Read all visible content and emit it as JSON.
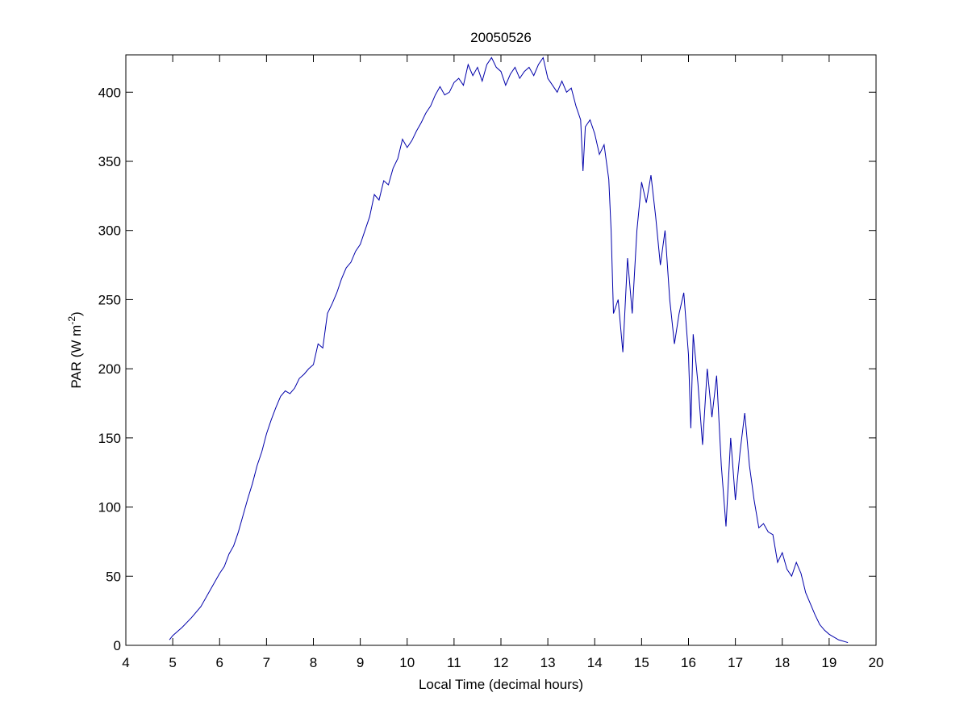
{
  "chart_data": {
    "type": "line",
    "title": "20050526",
    "xlabel": "Local Time (decimal hours)",
    "ylabel": [
      "PAR (W m",
      "-2",
      ")"
    ],
    "color": "#0000aa",
    "xlim": [
      4,
      20
    ],
    "xticks": [
      4,
      5,
      6,
      7,
      8,
      9,
      10,
      11,
      12,
      13,
      14,
      15,
      16,
      17,
      18,
      19,
      20
    ],
    "ylim": [
      0,
      427
    ],
    "yticks": [
      0,
      50,
      100,
      150,
      200,
      250,
      300,
      350,
      400
    ],
    "x": [
      4.93,
      5.0,
      5.2,
      5.4,
      5.6,
      5.8,
      6.0,
      6.1,
      6.2,
      6.3,
      6.4,
      6.5,
      6.6,
      6.7,
      6.8,
      6.9,
      7.0,
      7.1,
      7.2,
      7.3,
      7.4,
      7.5,
      7.6,
      7.7,
      7.8,
      7.9,
      8.0,
      8.1,
      8.2,
      8.3,
      8.4,
      8.5,
      8.6,
      8.7,
      8.8,
      8.9,
      9.0,
      9.1,
      9.2,
      9.3,
      9.4,
      9.5,
      9.6,
      9.7,
      9.8,
      9.9,
      10.0,
      10.1,
      10.2,
      10.3,
      10.4,
      10.5,
      10.6,
      10.7,
      10.8,
      10.9,
      11.0,
      11.1,
      11.2,
      11.3,
      11.4,
      11.5,
      11.6,
      11.7,
      11.8,
      11.9,
      12.0,
      12.1,
      12.2,
      12.3,
      12.4,
      12.5,
      12.6,
      12.7,
      12.8,
      12.9,
      13.0,
      13.1,
      13.2,
      13.3,
      13.4,
      13.5,
      13.6,
      13.7,
      13.75,
      13.8,
      13.9,
      14.0,
      14.1,
      14.2,
      14.3,
      14.35,
      14.4,
      14.5,
      14.6,
      14.7,
      14.8,
      14.9,
      15.0,
      15.1,
      15.2,
      15.3,
      15.4,
      15.5,
      15.6,
      15.7,
      15.8,
      15.9,
      16.0,
      16.05,
      16.1,
      16.2,
      16.3,
      16.4,
      16.5,
      16.6,
      16.7,
      16.8,
      16.9,
      17.0,
      17.1,
      17.2,
      17.3,
      17.4,
      17.5,
      17.6,
      17.7,
      17.8,
      17.9,
      18.0,
      18.1,
      18.2,
      18.3,
      18.4,
      18.5,
      18.6,
      18.7,
      18.8,
      18.9,
      19.0,
      19.2,
      19.4
    ],
    "values": [
      4,
      7,
      13,
      20,
      28,
      40,
      52,
      57,
      66,
      72,
      82,
      94,
      106,
      117,
      130,
      140,
      153,
      163,
      172,
      180,
      184,
      182,
      186,
      193,
      196,
      200,
      203,
      218,
      215,
      240,
      247,
      255,
      265,
      273,
      277,
      285,
      290,
      300,
      310,
      326,
      322,
      336,
      333,
      345,
      352,
      366,
      360,
      365,
      372,
      378,
      385,
      390,
      398,
      404,
      398,
      400,
      407,
      410,
      405,
      420,
      412,
      418,
      408,
      420,
      425,
      418,
      415,
      405,
      413,
      418,
      410,
      415,
      418,
      412,
      420,
      425,
      410,
      405,
      400,
      408,
      400,
      403,
      390,
      380,
      343,
      375,
      380,
      370,
      355,
      362,
      337,
      300,
      240,
      250,
      212,
      280,
      240,
      300,
      335,
      320,
      340,
      310,
      275,
      300,
      250,
      218,
      240,
      255,
      210,
      157,
      225,
      190,
      145,
      200,
      165,
      195,
      130,
      86,
      150,
      105,
      140,
      168,
      130,
      105,
      85,
      88,
      82,
      80,
      60,
      67,
      55,
      50,
      60,
      52,
      38,
      30,
      22,
      15,
      11,
      8,
      4,
      2
    ]
  }
}
